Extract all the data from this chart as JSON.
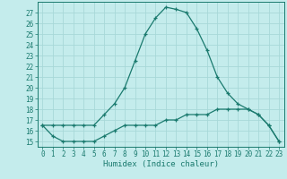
{
  "title": "",
  "xlabel": "Humidex (Indice chaleur)",
  "bg_color": "#c4ecec",
  "grid_color": "#a8d8d8",
  "line_color": "#1a7a6e",
  "x_upper": [
    0,
    1,
    2,
    3,
    4,
    5,
    6,
    7,
    8,
    9,
    10,
    11,
    12,
    13,
    14,
    15,
    16,
    17,
    18,
    19,
    20,
    21,
    22,
    23
  ],
  "y_upper": [
    16.5,
    16.5,
    16.5,
    16.5,
    16.5,
    16.5,
    17.5,
    18.5,
    20.0,
    22.5,
    25.0,
    26.5,
    27.5,
    27.3,
    27.0,
    25.5,
    23.5,
    21.0,
    19.5,
    18.5,
    18.0,
    17.5,
    16.5,
    15.0
  ],
  "x_lower": [
    0,
    1,
    2,
    3,
    4,
    5,
    6,
    7,
    8,
    9,
    10,
    11,
    12,
    13,
    14,
    15,
    16,
    17,
    18,
    19,
    20,
    21,
    22,
    23
  ],
  "y_lower": [
    16.5,
    15.5,
    15.0,
    15.0,
    15.0,
    15.0,
    15.5,
    16.0,
    16.5,
    16.5,
    16.5,
    16.5,
    17.0,
    17.0,
    17.5,
    17.5,
    17.5,
    18.0,
    18.0,
    18.0,
    18.0,
    17.5,
    16.5,
    15.0
  ],
  "ylim": [
    14.5,
    28.0
  ],
  "xlim": [
    -0.5,
    23.5
  ],
  "yticks": [
    15,
    16,
    17,
    18,
    19,
    20,
    21,
    22,
    23,
    24,
    25,
    26,
    27
  ],
  "xticks": [
    0,
    1,
    2,
    3,
    4,
    5,
    6,
    7,
    8,
    9,
    10,
    11,
    12,
    13,
    14,
    15,
    16,
    17,
    18,
    19,
    20,
    21,
    22,
    23
  ],
  "tick_fontsize": 5.5,
  "xlabel_fontsize": 6.5,
  "marker_size": 3.5,
  "linewidth": 0.9
}
